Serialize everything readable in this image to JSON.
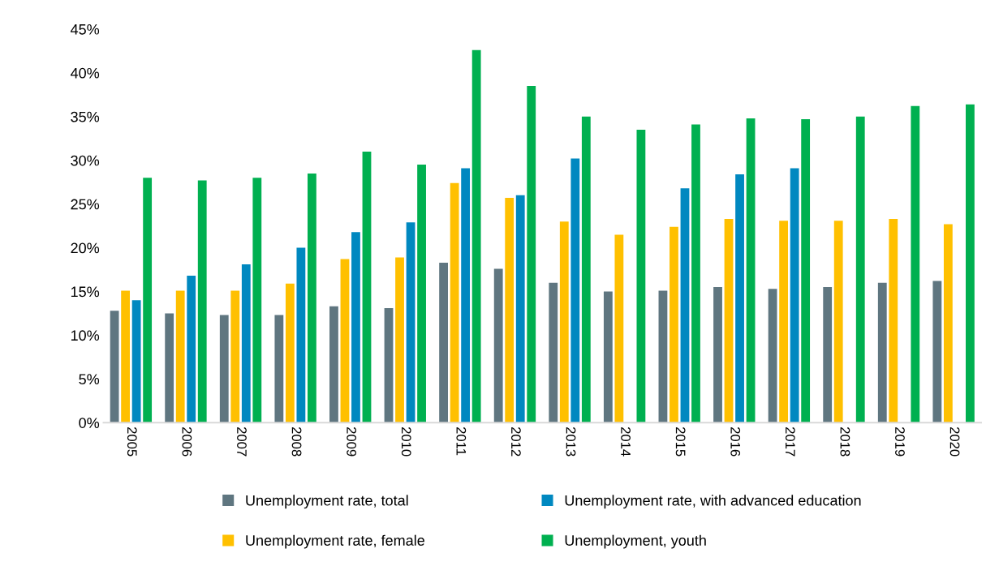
{
  "chart_data": {
    "type": "bar",
    "categories": [
      "2005",
      "2006",
      "2007",
      "2008",
      "2009",
      "2010",
      "2011",
      "2012",
      "2013",
      "2014",
      "2015",
      "2016",
      "2017",
      "2018",
      "2019",
      "2020"
    ],
    "series": [
      {
        "name": "Unemployment rate, total",
        "color": "#5f7680",
        "values": [
          12.8,
          12.5,
          12.3,
          12.3,
          13.3,
          13.1,
          18.3,
          17.6,
          16.0,
          15.0,
          15.1,
          15.5,
          15.3,
          15.5,
          16.0,
          16.2
        ]
      },
      {
        "name": "Unemployment rate, female",
        "color": "#ffc000",
        "values": [
          15.1,
          15.1,
          15.1,
          15.9,
          18.7,
          18.9,
          27.4,
          25.7,
          23.0,
          21.5,
          22.4,
          23.3,
          23.1,
          23.1,
          23.3,
          22.7
        ]
      },
      {
        "name": "Unemployment rate, with advanced education",
        "color": "#0088c0",
        "values": [
          14.0,
          16.8,
          18.1,
          20.0,
          21.8,
          22.9,
          29.1,
          26.0,
          30.2,
          null,
          26.8,
          28.4,
          29.1,
          null,
          null,
          null
        ]
      },
      {
        "name": "Unemployment, youth",
        "color": "#00b050",
        "values": [
          28.0,
          27.7,
          28.0,
          28.5,
          31.0,
          29.5,
          42.6,
          38.5,
          35.0,
          33.5,
          34.1,
          34.8,
          34.7,
          35.0,
          36.2,
          36.4
        ]
      }
    ],
    "ylim": [
      0,
      45
    ],
    "yticks": [
      {
        "value": 0,
        "label": "0%"
      },
      {
        "value": 5,
        "label": "5%"
      },
      {
        "value": 10,
        "label": "10%"
      },
      {
        "value": 15,
        "label": "15%"
      },
      {
        "value": 20,
        "label": "20%"
      },
      {
        "value": 25,
        "label": "25%"
      },
      {
        "value": 30,
        "label": "30%"
      },
      {
        "value": 35,
        "label": "35%"
      },
      {
        "value": 40,
        "label": "40%"
      },
      {
        "value": 45,
        "label": "45%"
      }
    ],
    "grid": false,
    "legend": "bottom"
  }
}
